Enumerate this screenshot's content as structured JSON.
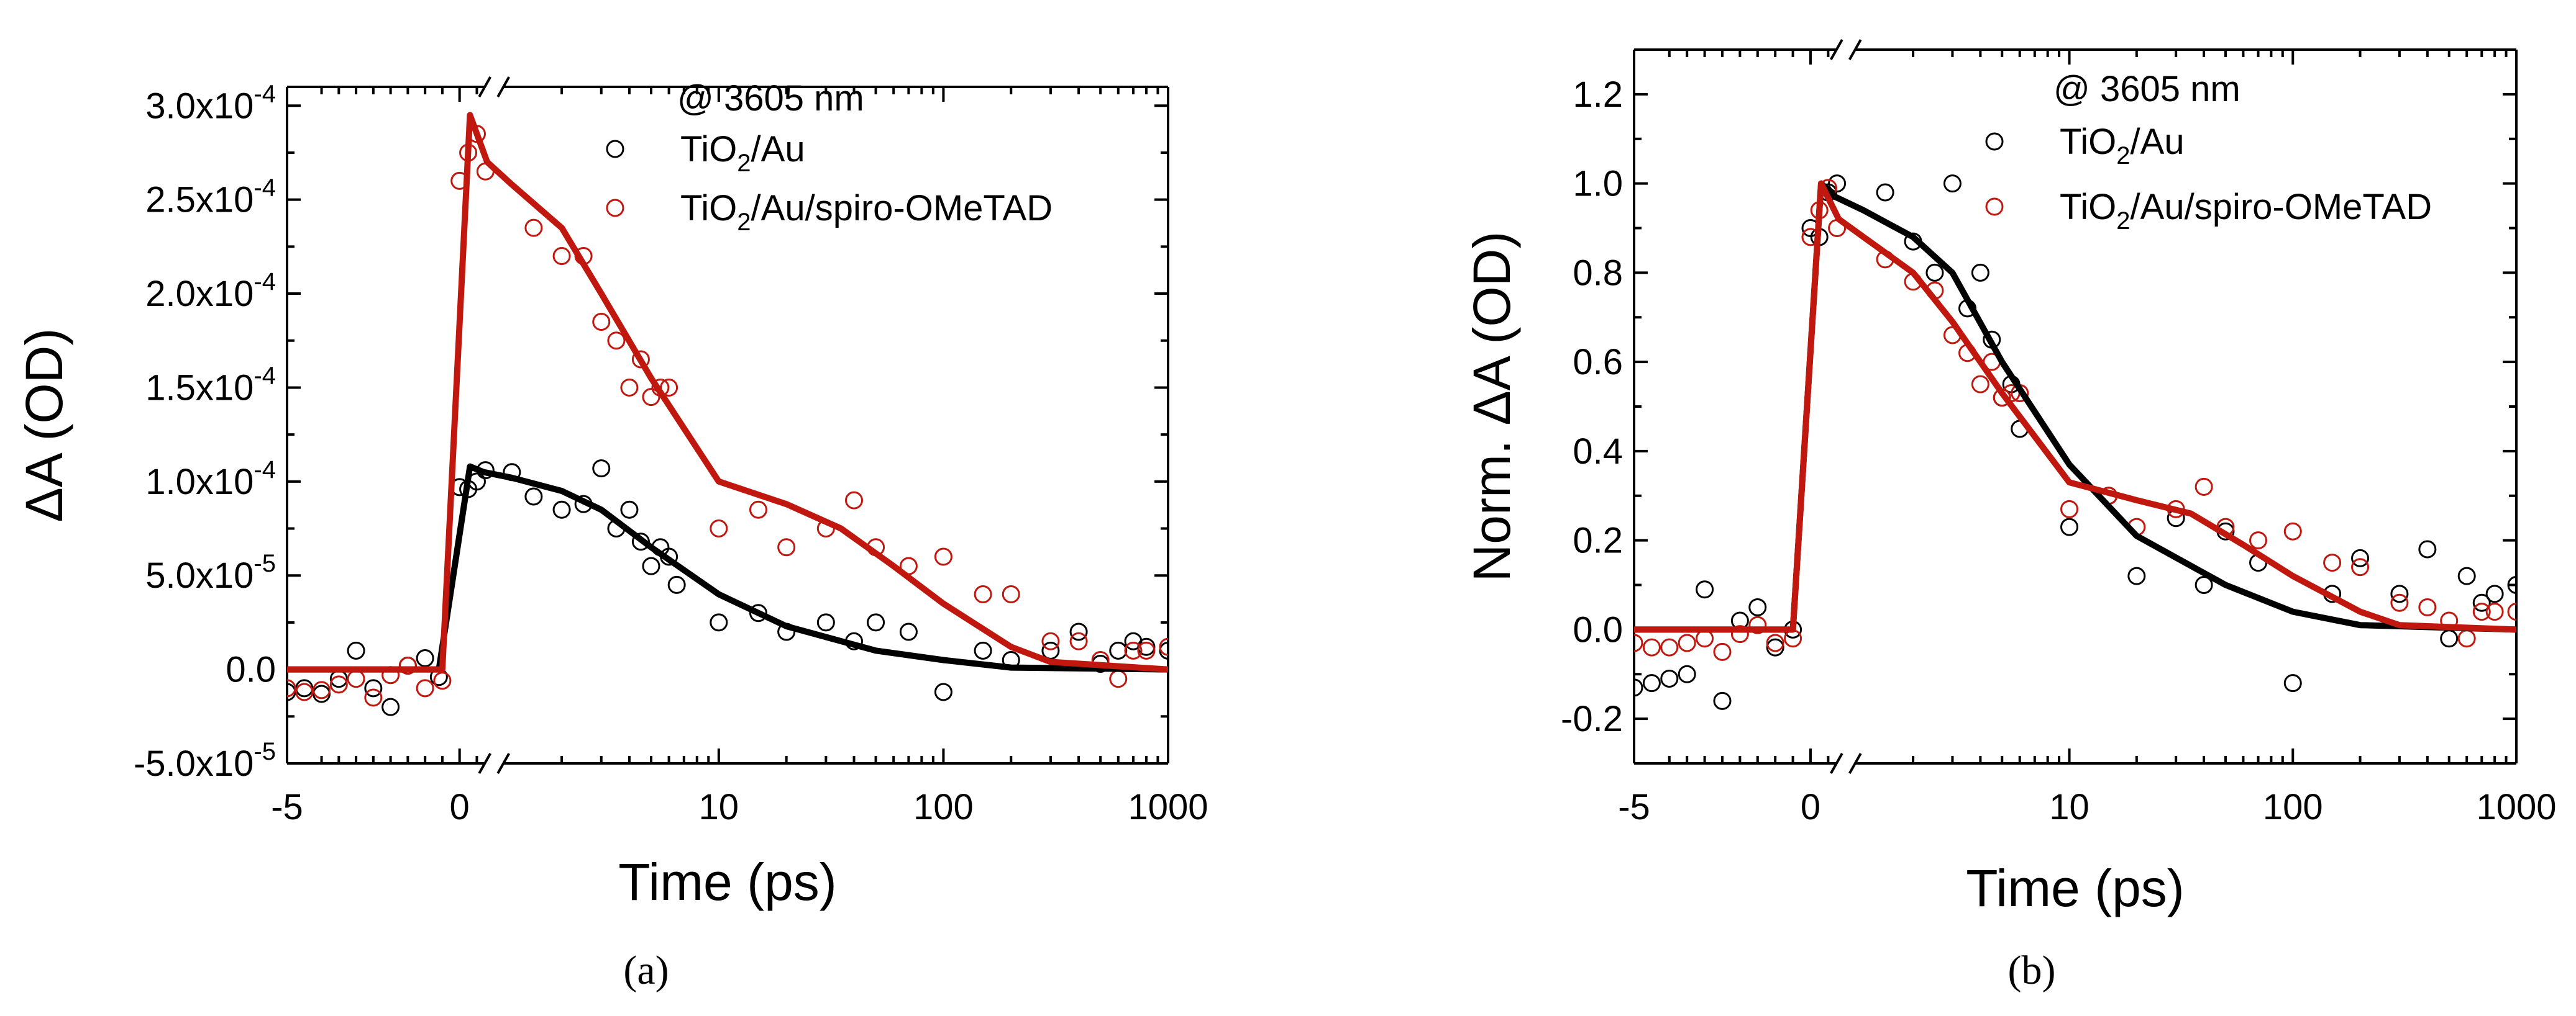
{
  "chart_data": [
    {
      "id": "a",
      "type": "scatter",
      "caption": "(a)",
      "annotation": "@ 3605 nm",
      "xlabel": "Time (ps)",
      "ylabel": "ΔA (OD)",
      "x_scale": "linear below 1 ps (axis break), log from 1 to 1000 ps",
      "xticks": [
        "-5",
        "0",
        "10",
        "100",
        "1000"
      ],
      "ylim": [
        -5e-05,
        0.00031
      ],
      "yticks": [
        {
          "v": -5e-05,
          "label": "-5.0x10",
          "exp": "-5"
        },
        {
          "v": 0,
          "label": "0.0",
          "exp": ""
        },
        {
          "v": 5e-05,
          "label": "5.0x10",
          "exp": "-5"
        },
        {
          "v": 0.0001,
          "label": "1.0x10",
          "exp": "-4"
        },
        {
          "v": 0.00015,
          "label": "1.5x10",
          "exp": "-4"
        },
        {
          "v": 0.0002,
          "label": "2.0x10",
          "exp": "-4"
        },
        {
          "v": 0.00025,
          "label": "2.5x10",
          "exp": "-4"
        },
        {
          "v": 0.0003,
          "label": "3.0x10",
          "exp": "-4"
        }
      ],
      "series": [
        {
          "name": "TiO2/Au",
          "legend_main": "TiO",
          "legend_sub": "2",
          "legend_rest": "/Au",
          "color": "#000000",
          "points": [
            [
              -5,
              -1.2e-05
            ],
            [
              -4.5,
              -1e-05
            ],
            [
              -4,
              -1.3e-05
            ],
            [
              -3.5,
              -5e-06
            ],
            [
              -3,
              1e-05
            ],
            [
              -2.5,
              -1e-05
            ],
            [
              -2,
              -2e-05
            ],
            [
              -1.5,
              2e-06
            ],
            [
              -1,
              6e-06
            ],
            [
              -0.6,
              -4e-06
            ],
            [
              0,
              9.7e-05
            ],
            [
              0.25,
              9.6e-05
            ],
            [
              0.5,
              0.0001
            ],
            [
              0.75,
              0.000106
            ],
            [
              1.2,
              0.000105
            ],
            [
              1.5,
              9.2e-05
            ],
            [
              2,
              8.5e-05
            ],
            [
              2.5,
              8.8e-05
            ],
            [
              3,
              0.000107
            ],
            [
              3.5,
              7.5e-05
            ],
            [
              4,
              8.5e-05
            ],
            [
              4.5,
              6.8e-05
            ],
            [
              5,
              5.5e-05
            ],
            [
              5.5,
              6.5e-05
            ],
            [
              6,
              6e-05
            ],
            [
              6.5,
              4.5e-05
            ],
            [
              10,
              2.5e-05
            ],
            [
              15,
              3e-05
            ],
            [
              20,
              2e-05
            ],
            [
              30,
              2.5e-05
            ],
            [
              40,
              1.5e-05
            ],
            [
              50,
              2.5e-05
            ],
            [
              70,
              2e-05
            ],
            [
              100,
              -1.2e-05
            ],
            [
              150,
              1e-05
            ],
            [
              200,
              5e-06
            ],
            [
              300,
              1e-05
            ],
            [
              400,
              2e-05
            ],
            [
              500,
              3e-06
            ],
            [
              600,
              1e-05
            ],
            [
              700,
              1.5e-05
            ],
            [
              800,
              1.2e-05
            ],
            [
              1000,
              1e-05
            ]
          ],
          "fit": [
            [
              -5,
              0
            ],
            [
              -0.6,
              0
            ],
            [
              0.3,
              0.000108
            ],
            [
              0.7,
              0.000105
            ],
            [
              1.2,
              0.000102
            ],
            [
              2,
              9.5e-05
            ],
            [
              3,
              8.5e-05
            ],
            [
              5,
              6.5e-05
            ],
            [
              10,
              4e-05
            ],
            [
              20,
              2.3e-05
            ],
            [
              50,
              1e-05
            ],
            [
              100,
              5e-06
            ],
            [
              200,
              1e-06
            ],
            [
              1000,
              0
            ]
          ]
        },
        {
          "name": "TiO2/Au/spiro-OMeTAD",
          "legend_main": "TiO",
          "legend_sub": "2",
          "legend_rest": "/Au/spiro-OMeTAD",
          "color": "#c0180f",
          "points": [
            [
              -5,
              -1e-05
            ],
            [
              -4.5,
              -1.2e-05
            ],
            [
              -4,
              -1.1e-05
            ],
            [
              -3.5,
              -8e-06
            ],
            [
              -3,
              -5e-06
            ],
            [
              -2.5,
              -1.5e-05
            ],
            [
              -2,
              -3e-06
            ],
            [
              -1.5,
              2e-06
            ],
            [
              -1,
              -1e-05
            ],
            [
              -0.5,
              -6e-06
            ],
            [
              0,
              0.00026
            ],
            [
              0.25,
              0.000275
            ],
            [
              0.5,
              0.000285
            ],
            [
              0.75,
              0.000265
            ],
            [
              1.5,
              0.000235
            ],
            [
              2,
              0.00022
            ],
            [
              2.5,
              0.00022
            ],
            [
              3,
              0.000185
            ],
            [
              3.5,
              0.000175
            ],
            [
              4,
              0.00015
            ],
            [
              4.5,
              0.000165
            ],
            [
              5,
              0.000145
            ],
            [
              5.5,
              0.00015
            ],
            [
              6,
              0.00015
            ],
            [
              10,
              7.5e-05
            ],
            [
              15,
              8.5e-05
            ],
            [
              20,
              6.5e-05
            ],
            [
              30,
              7.5e-05
            ],
            [
              40,
              9e-05
            ],
            [
              50,
              6.5e-05
            ],
            [
              70,
              5.5e-05
            ],
            [
              100,
              6e-05
            ],
            [
              150,
              4e-05
            ],
            [
              200,
              4e-05
            ],
            [
              300,
              1.5e-05
            ],
            [
              400,
              1.5e-05
            ],
            [
              500,
              5e-06
            ],
            [
              600,
              -5e-06
            ],
            [
              700,
              1e-05
            ],
            [
              800,
              1e-05
            ],
            [
              1000,
              1.2e-05
            ]
          ],
          "fit": [
            [
              -5,
              0
            ],
            [
              -0.5,
              0
            ],
            [
              0.3,
              0.000295
            ],
            [
              0.8,
              0.00027
            ],
            [
              1.2,
              0.000258
            ],
            [
              2,
              0.000235
            ],
            [
              3,
              0.0002
            ],
            [
              5,
              0.000155
            ],
            [
              10,
              0.0001
            ],
            [
              20,
              8.8e-05
            ],
            [
              35,
              7.5e-05
            ],
            [
              60,
              5.5e-05
            ],
            [
              100,
              3.5e-05
            ],
            [
              200,
              1.2e-05
            ],
            [
              300,
              4e-06
            ],
            [
              1000,
              0
            ]
          ]
        }
      ]
    },
    {
      "id": "b",
      "type": "scatter",
      "caption": "(b)",
      "annotation": "@ 3605 nm",
      "xlabel": "Time (ps)",
      "ylabel": "Norm. ΔA (OD)",
      "x_scale": "linear below 1 ps (axis break), log from 1 to 1000 ps",
      "xticks": [
        "-5",
        "0",
        "10",
        "100",
        "1000"
      ],
      "ylim": [
        -0.3,
        1.3
      ],
      "yticks": [
        {
          "v": -0.2,
          "label": "-0.2",
          "exp": ""
        },
        {
          "v": 0,
          "label": "0.0",
          "exp": ""
        },
        {
          "v": 0.2,
          "label": "0.2",
          "exp": ""
        },
        {
          "v": 0.4,
          "label": "0.4",
          "exp": ""
        },
        {
          "v": 0.6,
          "label": "0.6",
          "exp": ""
        },
        {
          "v": 0.8,
          "label": "0.8",
          "exp": ""
        },
        {
          "v": 1.0,
          "label": "1.0",
          "exp": ""
        },
        {
          "v": 1.2,
          "label": "1.2",
          "exp": ""
        }
      ],
      "series": [
        {
          "name": "TiO2/Au",
          "legend_main": "TiO",
          "legend_sub": "2",
          "legend_rest": "/Au",
          "color": "#000000",
          "points": [
            [
              -5,
              -0.13
            ],
            [
              -4.5,
              -0.12
            ],
            [
              -4,
              -0.11
            ],
            [
              -3.5,
              -0.1
            ],
            [
              -3,
              0.09
            ],
            [
              -2.5,
              -0.16
            ],
            [
              -2,
              0.02
            ],
            [
              -1.5,
              0.05
            ],
            [
              -1,
              -0.04
            ],
            [
              -0.5,
              0.0
            ],
            [
              0,
              0.9
            ],
            [
              0.25,
              0.88
            ],
            [
              0.5,
              0.98
            ],
            [
              0.75,
              1.0
            ],
            [
              1.5,
              0.98
            ],
            [
              2,
              0.87
            ],
            [
              2.5,
              0.8
            ],
            [
              3,
              1.0
            ],
            [
              3.5,
              0.72
            ],
            [
              4,
              0.8
            ],
            [
              4.5,
              0.65
            ],
            [
              5,
              0.52
            ],
            [
              5.5,
              0.55
            ],
            [
              6,
              0.45
            ],
            [
              10,
              0.23
            ],
            [
              15,
              0.3
            ],
            [
              20,
              0.12
            ],
            [
              30,
              0.25
            ],
            [
              40,
              0.1
            ],
            [
              50,
              0.22
            ],
            [
              70,
              0.15
            ],
            [
              100,
              -0.12
            ],
            [
              150,
              0.08
            ],
            [
              200,
              0.16
            ],
            [
              300,
              0.08
            ],
            [
              400,
              0.18
            ],
            [
              500,
              -0.02
            ],
            [
              600,
              0.12
            ],
            [
              700,
              0.06
            ],
            [
              800,
              0.08
            ],
            [
              1000,
              0.1
            ]
          ],
          "fit": [
            [
              -5,
              0
            ],
            [
              -0.5,
              0
            ],
            [
              0.3,
              1.0
            ],
            [
              0.7,
              0.97
            ],
            [
              1.2,
              0.94
            ],
            [
              2,
              0.88
            ],
            [
              3,
              0.8
            ],
            [
              5,
              0.6
            ],
            [
              10,
              0.37
            ],
            [
              20,
              0.21
            ],
            [
              50,
              0.1
            ],
            [
              100,
              0.04
            ],
            [
              200,
              0.01
            ],
            [
              1000,
              0
            ]
          ]
        },
        {
          "name": "TiO2/Au/spiro-OMeTAD",
          "legend_main": "TiO",
          "legend_sub": "2",
          "legend_rest": "/Au/spiro-OMeTAD",
          "color": "#c0180f",
          "points": [
            [
              -5,
              -0.03
            ],
            [
              -4.5,
              -0.04
            ],
            [
              -4,
              -0.04
            ],
            [
              -3.5,
              -0.03
            ],
            [
              -3,
              -0.02
            ],
            [
              -2.5,
              -0.05
            ],
            [
              -2,
              -0.01
            ],
            [
              -1.5,
              0.01
            ],
            [
              -1,
              -0.03
            ],
            [
              -0.5,
              -0.02
            ],
            [
              0,
              0.88
            ],
            [
              0.25,
              0.94
            ],
            [
              0.5,
              0.99
            ],
            [
              0.75,
              0.9
            ],
            [
              1.5,
              0.83
            ],
            [
              2,
              0.78
            ],
            [
              2.5,
              0.76
            ],
            [
              3,
              0.66
            ],
            [
              3.5,
              0.62
            ],
            [
              4,
              0.55
            ],
            [
              4.5,
              0.6
            ],
            [
              5,
              0.52
            ],
            [
              5.5,
              0.53
            ],
            [
              6,
              0.53
            ],
            [
              10,
              0.27
            ],
            [
              15,
              0.3
            ],
            [
              20,
              0.23
            ],
            [
              30,
              0.27
            ],
            [
              40,
              0.32
            ],
            [
              50,
              0.23
            ],
            [
              70,
              0.2
            ],
            [
              100,
              0.22
            ],
            [
              150,
              0.15
            ],
            [
              200,
              0.14
            ],
            [
              300,
              0.06
            ],
            [
              400,
              0.05
            ],
            [
              500,
              0.02
            ],
            [
              600,
              -0.02
            ],
            [
              700,
              0.04
            ],
            [
              800,
              0.04
            ],
            [
              1000,
              0.04
            ]
          ],
          "fit": [
            [
              -5,
              0
            ],
            [
              -0.5,
              0
            ],
            [
              0.3,
              1.0
            ],
            [
              0.8,
              0.92
            ],
            [
              1.2,
              0.88
            ],
            [
              2,
              0.8
            ],
            [
              3,
              0.69
            ],
            [
              5,
              0.53
            ],
            [
              10,
              0.33
            ],
            [
              20,
              0.29
            ],
            [
              35,
              0.26
            ],
            [
              60,
              0.19
            ],
            [
              100,
              0.12
            ],
            [
              200,
              0.04
            ],
            [
              300,
              0.01
            ],
            [
              1000,
              0
            ]
          ]
        }
      ]
    }
  ]
}
